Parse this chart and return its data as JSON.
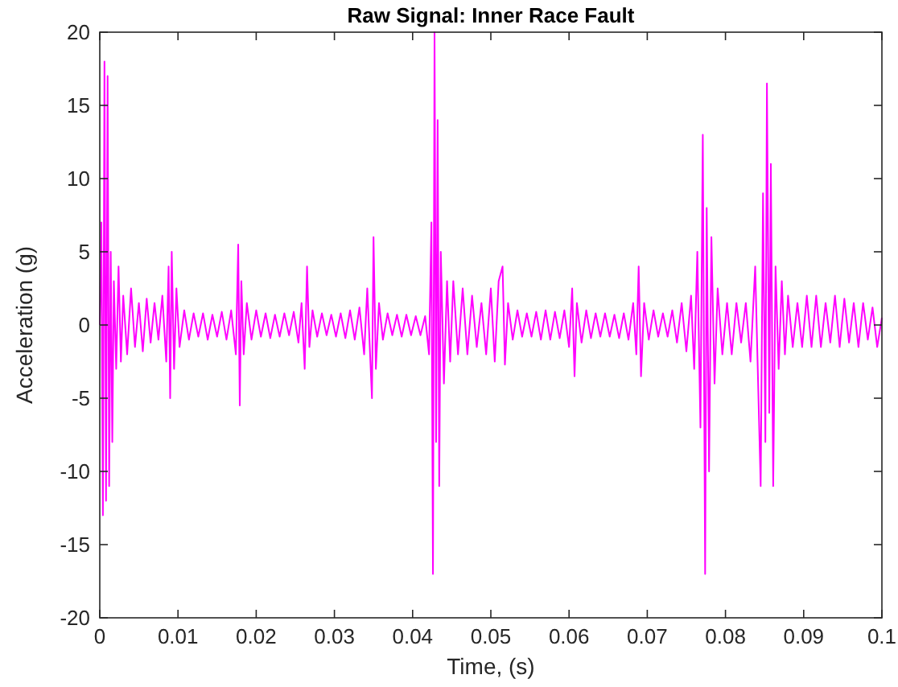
{
  "chart_data": {
    "type": "line",
    "title": "Raw Signal: Inner Race Fault",
    "xlabel": "Time, (s)",
    "ylabel": "Acceleration (g)",
    "x": [
      0,
      0.0002,
      0.0004,
      0.0006,
      0.0008,
      0.001,
      0.0012,
      0.0014,
      0.0016,
      0.0018,
      0.0021,
      0.0024,
      0.0027,
      0.003,
      0.0035,
      0.004,
      0.0045,
      0.005,
      0.0055,
      0.006,
      0.0065,
      0.007,
      0.0075,
      0.008,
      0.0085,
      0.0088,
      0.009,
      0.0092,
      0.0095,
      0.0098,
      0.0102,
      0.0108,
      0.0114,
      0.012,
      0.0126,
      0.0132,
      0.0138,
      0.0144,
      0.015,
      0.0156,
      0.0162,
      0.0168,
      0.0174,
      0.0177,
      0.0179,
      0.0181,
      0.0184,
      0.0188,
      0.0194,
      0.02,
      0.0206,
      0.0212,
      0.0218,
      0.0224,
      0.023,
      0.0236,
      0.0242,
      0.0248,
      0.0254,
      0.0258,
      0.0262,
      0.0265,
      0.0268,
      0.0272,
      0.0278,
      0.0284,
      0.029,
      0.0296,
      0.0302,
      0.0308,
      0.0314,
      0.032,
      0.0326,
      0.0332,
      0.0338,
      0.0342,
      0.0348,
      0.035,
      0.0353,
      0.0357,
      0.0362,
      0.0368,
      0.0374,
      0.038,
      0.0386,
      0.0392,
      0.0398,
      0.0404,
      0.041,
      0.0416,
      0.0421,
      0.0424,
      0.0426,
      0.0428,
      0.043,
      0.0432,
      0.0434,
      0.0436,
      0.044,
      0.0444,
      0.0448,
      0.0452,
      0.0458,
      0.0464,
      0.047,
      0.0476,
      0.0482,
      0.0488,
      0.0494,
      0.05,
      0.0505,
      0.051,
      0.0515,
      0.0518,
      0.0522,
      0.0528,
      0.0534,
      0.054,
      0.0546,
      0.0552,
      0.0558,
      0.0564,
      0.057,
      0.0576,
      0.0582,
      0.0588,
      0.0594,
      0.06,
      0.0604,
      0.0607,
      0.061,
      0.0616,
      0.0622,
      0.0628,
      0.0634,
      0.064,
      0.0646,
      0.0652,
      0.0658,
      0.0664,
      0.067,
      0.0676,
      0.0682,
      0.0686,
      0.0689,
      0.0692,
      0.0696,
      0.0702,
      0.0708,
      0.0714,
      0.072,
      0.0726,
      0.0732,
      0.0738,
      0.0744,
      0.075,
      0.0756,
      0.076,
      0.0764,
      0.0768,
      0.0771,
      0.0774,
      0.0776,
      0.0779,
      0.0782,
      0.0786,
      0.079,
      0.0796,
      0.0802,
      0.0808,
      0.0814,
      0.082,
      0.0826,
      0.0832,
      0.0838,
      0.0845,
      0.0848,
      0.0851,
      0.0853,
      0.0856,
      0.0858,
      0.0861,
      0.0864,
      0.0868,
      0.0872,
      0.0876,
      0.088,
      0.0886,
      0.0892,
      0.0898,
      0.0904,
      0.091,
      0.0916,
      0.0922,
      0.0928,
      0.0934,
      0.094,
      0.0946,
      0.0952,
      0.0958,
      0.0964,
      0.097,
      0.0976,
      0.0982,
      0.0988,
      0.0994,
      0.1
    ],
    "series": [
      {
        "color": "#ff00ff",
        "values": [
          0,
          7,
          -13,
          18,
          -12,
          17,
          -11,
          5,
          -8,
          3,
          -3,
          4,
          -2.5,
          2,
          -2,
          2.5,
          -1.5,
          1.5,
          -1.8,
          1.8,
          -1.2,
          1.5,
          -1,
          2,
          -2.5,
          4,
          -5,
          5,
          -3,
          2.5,
          -1.5,
          1,
          -1,
          0.8,
          -0.8,
          0.8,
          -1,
          0.7,
          -0.8,
          0.9,
          -1,
          1,
          -2,
          5.5,
          -5.5,
          3,
          -2,
          1.5,
          -1,
          1,
          -0.8,
          0.8,
          -0.9,
          0.7,
          -0.8,
          0.8,
          -0.7,
          0.9,
          -1.2,
          1.5,
          -3,
          4,
          -1.5,
          1,
          -0.8,
          0.8,
          -0.7,
          0.7,
          -0.8,
          0.8,
          -0.9,
          1,
          -1,
          1.2,
          -2,
          2.5,
          -5,
          6,
          -3,
          1.5,
          -1,
          0.8,
          -0.7,
          0.7,
          -0.8,
          0.7,
          -0.7,
          0.6,
          -0.7,
          0.6,
          -2,
          7,
          -17,
          20,
          -8,
          14,
          -11,
          5,
          -4,
          3,
          -2.5,
          3,
          -2,
          2.5,
          -2,
          2,
          -1.5,
          1.5,
          -2,
          2.5,
          -2.5,
          3,
          4,
          -2.7,
          1.5,
          -1,
          1,
          -0.8,
          0.8,
          -0.8,
          0.9,
          -1,
          1,
          -1,
          0.9,
          -0.9,
          1,
          -1.5,
          2.5,
          -3.5,
          1.5,
          -1.2,
          1,
          -0.9,
          0.8,
          -0.8,
          0.8,
          -0.8,
          0.7,
          -0.9,
          0.8,
          -1,
          1.5,
          -2,
          4,
          -3.5,
          1.5,
          -1,
          1,
          -0.8,
          0.8,
          -0.8,
          1,
          -1.2,
          1.5,
          -1.8,
          2,
          -3,
          5,
          -7,
          13,
          -17,
          8,
          -10,
          6,
          -4,
          2.5,
          -2,
          1.5,
          -2,
          1.5,
          -1.2,
          1.5,
          -2.5,
          4,
          -11,
          9,
          -8,
          16.5,
          -6,
          11,
          -11,
          4,
          -3,
          3,
          -2,
          2,
          -1.5,
          1.5,
          -1.5,
          2,
          -1.5,
          2,
          -1.5,
          1.5,
          -1.2,
          2,
          -1.5,
          1.8,
          -1.2,
          1.5,
          -1.5,
          1.5,
          -1,
          1.2,
          -1.5,
          0.5
        ]
      }
    ],
    "xlim": [
      0,
      0.1
    ],
    "xticks": [
      0,
      0.01,
      0.02,
      0.03,
      0.04,
      0.05,
      0.06,
      0.07,
      0.08,
      0.09,
      0.1
    ],
    "ylim": [
      -20,
      20
    ],
    "yticks": [
      -20,
      -15,
      -10,
      -5,
      0,
      5,
      10,
      15,
      20
    ],
    "marker": "none"
  }
}
